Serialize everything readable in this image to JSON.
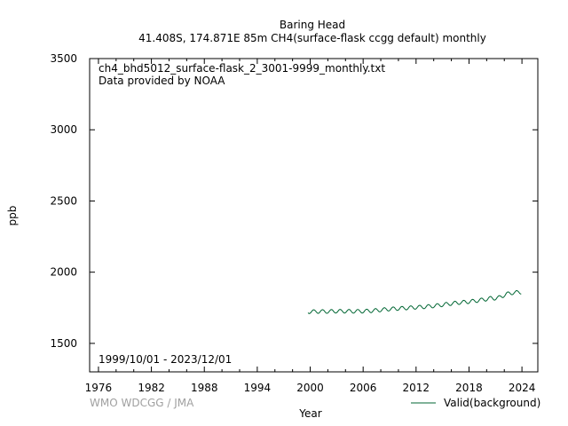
{
  "chart_data": {
    "type": "line",
    "title": "Baring Head",
    "subtitle": "41.408S, 174.871E 85m    CH4(surface-flask ccgg default) monthly",
    "annotation_file": "ch4_bhd5012_surface-flask_2_3001-9999_monthly.txt",
    "annotation_provider": "Data provided by NOAA",
    "date_range": "1999/10/01 - 2023/12/01",
    "credit": "WMO WDCGG / JMA",
    "xlabel": "Year",
    "ylabel": "ppb",
    "xlim": [
      1975,
      2025.8
    ],
    "ylim": [
      1300,
      3500
    ],
    "x_ticks": [
      "1976",
      "1982",
      "1988",
      "1994",
      "2000",
      "2006",
      "2012",
      "2018",
      "2024"
    ],
    "y_ticks": [
      "1500",
      "2000",
      "2500",
      "3000",
      "3500"
    ],
    "grid": false,
    "legend_position": "bottom-right",
    "series": [
      {
        "name": "Valid(background)",
        "color": "#006633",
        "start": "1999-10",
        "end": "2023-12",
        "x": [
          1999.75,
          2000,
          2001,
          2002,
          2003,
          2004,
          2005,
          2006,
          2007,
          2008,
          2009,
          2010,
          2011,
          2012,
          2013,
          2014,
          2015,
          2016,
          2017,
          2018,
          2019,
          2020,
          2021,
          2022,
          2023,
          2023.92
        ],
        "y": [
          1722,
          1723,
          1724,
          1724,
          1726,
          1726,
          1725,
          1726,
          1729,
          1735,
          1741,
          1745,
          1749,
          1753,
          1757,
          1763,
          1771,
          1780,
          1787,
          1793,
          1801,
          1811,
          1825,
          1843,
          1856,
          1860
        ],
        "seasonal_amplitude": 13,
        "dip": {
          "x": [
            2020.5,
            2022.2
          ],
          "depth": 10
        }
      }
    ]
  }
}
